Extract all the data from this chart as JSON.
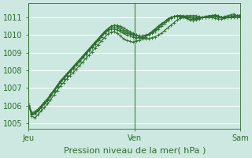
{
  "title": "",
  "xlabel": "Pression niveau de la mer( hPa )",
  "ylabel": "",
  "bg_color": "#cde8e0",
  "grid_color": "#b8d8d0",
  "line_color": "#2d6e2d",
  "xlim": [
    0,
    96
  ],
  "ylim": [
    1004.7,
    1011.8
  ],
  "yticks": [
    1005,
    1006,
    1007,
    1008,
    1009,
    1010,
    1011
  ],
  "xticks": [
    0,
    48,
    96
  ],
  "xticklabels": [
    "Jeu",
    "Ven",
    "Sam"
  ],
  "series": [
    [
      1006.0,
      1005.4,
      1005.3,
      1005.5,
      1005.7,
      1005.9,
      1006.1,
      1006.35,
      1006.6,
      1006.85,
      1007.1,
      1007.3,
      1007.5,
      1007.7,
      1007.85,
      1008.05,
      1008.25,
      1008.45,
      1008.65,
      1008.85,
      1009.05,
      1009.25,
      1009.45,
      1009.65,
      1009.85,
      1010.05,
      1010.15,
      1010.2,
      1010.1,
      1009.95,
      1009.8,
      1009.7,
      1009.65,
      1009.6,
      1009.65,
      1009.7,
      1009.8,
      1009.9,
      1010.05,
      1010.2,
      1010.35,
      1010.5,
      1010.65,
      1010.75,
      1010.85,
      1010.95,
      1011.05,
      1011.1,
      1011.1,
      1011.05,
      1010.95,
      1010.85,
      1010.8,
      1010.85,
      1010.9,
      1011.0,
      1011.05,
      1011.05,
      1011.1,
      1011.15,
      1011.1,
      1011.0,
      1011.05,
      1011.1,
      1011.15,
      1011.2,
      1011.1,
      1011.0
    ],
    [
      1006.0,
      1005.5,
      1005.55,
      1005.7,
      1005.9,
      1006.1,
      1006.3,
      1006.55,
      1006.8,
      1007.05,
      1007.3,
      1007.5,
      1007.7,
      1007.9,
      1008.1,
      1008.3,
      1008.5,
      1008.7,
      1008.9,
      1009.1,
      1009.3,
      1009.5,
      1009.7,
      1009.9,
      1010.1,
      1010.3,
      1010.45,
      1010.55,
      1010.55,
      1010.5,
      1010.4,
      1010.3,
      1010.2,
      1010.1,
      1010.0,
      1009.9,
      1009.85,
      1009.8,
      1009.8,
      1009.85,
      1009.9,
      1010.0,
      1010.1,
      1010.25,
      1010.4,
      1010.55,
      1010.7,
      1010.85,
      1010.95,
      1011.05,
      1011.1,
      1011.1,
      1011.1,
      1011.1,
      1011.05,
      1011.0,
      1011.0,
      1011.05,
      1011.1,
      1011.1,
      1011.1,
      1011.0,
      1011.0,
      1011.0,
      1011.0,
      1011.05,
      1011.1,
      1011.15
    ],
    [
      1006.0,
      1005.55,
      1005.6,
      1005.75,
      1005.95,
      1006.15,
      1006.35,
      1006.6,
      1006.85,
      1007.1,
      1007.35,
      1007.55,
      1007.75,
      1007.95,
      1008.15,
      1008.35,
      1008.55,
      1008.75,
      1008.95,
      1009.15,
      1009.35,
      1009.55,
      1009.75,
      1009.95,
      1010.15,
      1010.35,
      1010.5,
      1010.55,
      1010.5,
      1010.4,
      1010.3,
      1010.2,
      1010.1,
      1010.05,
      1010.0,
      1009.95,
      1009.95,
      1009.95,
      1010.0,
      1010.1,
      1010.2,
      1010.35,
      1010.5,
      1010.65,
      1010.8,
      1010.95,
      1011.05,
      1011.1,
      1011.1,
      1011.1,
      1011.05,
      1011.0,
      1011.0,
      1011.0,
      1011.0,
      1011.0,
      1011.05,
      1011.1,
      1011.1,
      1011.1,
      1011.0,
      1011.0,
      1011.0,
      1011.0,
      1011.05,
      1011.1,
      1011.1,
      1011.05
    ],
    [
      1006.1,
      1005.6,
      1005.65,
      1005.8,
      1006.0,
      1006.2,
      1006.4,
      1006.65,
      1006.9,
      1007.15,
      1007.4,
      1007.6,
      1007.8,
      1008.0,
      1008.2,
      1008.4,
      1008.6,
      1008.8,
      1009.0,
      1009.2,
      1009.4,
      1009.6,
      1009.8,
      1010.0,
      1010.2,
      1010.35,
      1010.45,
      1010.45,
      1010.4,
      1010.3,
      1010.2,
      1010.1,
      1010.05,
      1010.0,
      1009.95,
      1009.95,
      1009.95,
      1010.0,
      1010.05,
      1010.15,
      1010.3,
      1010.45,
      1010.6,
      1010.75,
      1010.9,
      1011.0,
      1011.05,
      1011.05,
      1011.05,
      1011.05,
      1011.0,
      1011.0,
      1010.95,
      1010.95,
      1011.0,
      1011.0,
      1011.0,
      1011.05,
      1011.05,
      1011.05,
      1011.0,
      1011.0,
      1011.0,
      1011.0,
      1011.0,
      1011.05,
      1011.1,
      1011.1
    ],
    [
      1006.05,
      1005.5,
      1005.55,
      1005.7,
      1005.9,
      1006.1,
      1006.3,
      1006.55,
      1006.8,
      1007.05,
      1007.3,
      1007.5,
      1007.7,
      1007.9,
      1008.1,
      1008.3,
      1008.5,
      1008.7,
      1008.9,
      1009.1,
      1009.3,
      1009.5,
      1009.7,
      1009.9,
      1010.1,
      1010.25,
      1010.35,
      1010.35,
      1010.3,
      1010.2,
      1010.1,
      1010.0,
      1009.95,
      1009.9,
      1009.85,
      1009.85,
      1009.9,
      1009.95,
      1010.05,
      1010.15,
      1010.3,
      1010.45,
      1010.6,
      1010.75,
      1010.9,
      1011.0,
      1011.05,
      1011.05,
      1011.0,
      1011.0,
      1010.95,
      1010.9,
      1010.9,
      1010.9,
      1010.95,
      1011.0,
      1011.0,
      1011.0,
      1011.0,
      1010.95,
      1010.9,
      1010.9,
      1010.95,
      1011.0,
      1011.0,
      1011.0,
      1011.0,
      1011.0
    ]
  ],
  "vline_positions": [
    0,
    48,
    96
  ],
  "marker": "+",
  "markersize": 2.5,
  "linewidth": 0.8,
  "xlabel_fontsize": 8,
  "tick_fontsize": 7
}
